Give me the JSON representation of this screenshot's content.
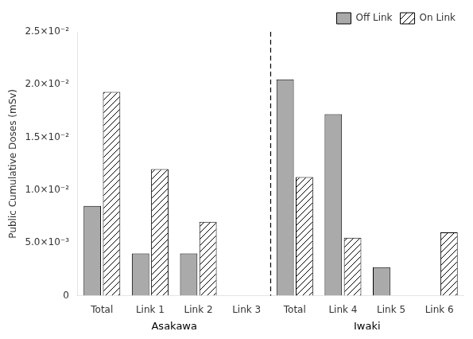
{
  "chart_data": {
    "type": "bar",
    "categories": [
      "Total",
      "Link 1",
      "Link 2",
      "Link 3",
      "Total",
      "Link 4",
      "Link 5",
      "Link 6"
    ],
    "series": [
      {
        "name": "Off Link",
        "color": "#aaaaaa",
        "values": [
          0.0085,
          0.004,
          0.004,
          0.0,
          0.0205,
          0.0172,
          0.0027,
          0.0
        ]
      },
      {
        "name": "On Link",
        "color": "#ffffff",
        "values": [
          0.0193,
          0.012,
          0.007,
          0.0,
          0.01125,
          0.0055,
          0.0,
          0.006
        ]
      }
    ],
    "ylabel": "Public Cumulative Doses (mSv)",
    "ylim": [
      0,
      0.025
    ],
    "yticks": [
      0,
      {
        "value": 0.005,
        "label": "5.0×10⁻³"
      },
      {
        "value": 0.01,
        "label": "1.0×10⁻²"
      },
      {
        "value": 0.015,
        "label": "1.5×10⁻²"
      },
      {
        "value": 0.02,
        "label": "2.0×10⁻²"
      },
      {
        "value": 0.025,
        "label": "2.5×10⁻²"
      }
    ],
    "annotations": [
      {
        "type": "vline",
        "x": 3.5,
        "line_style": "dashed"
      },
      {
        "text": "Asakawa",
        "x": 1.5
      },
      {
        "text": "Iwaki",
        "x": 5.5
      }
    ],
    "grid": false,
    "legend": "upper right"
  }
}
